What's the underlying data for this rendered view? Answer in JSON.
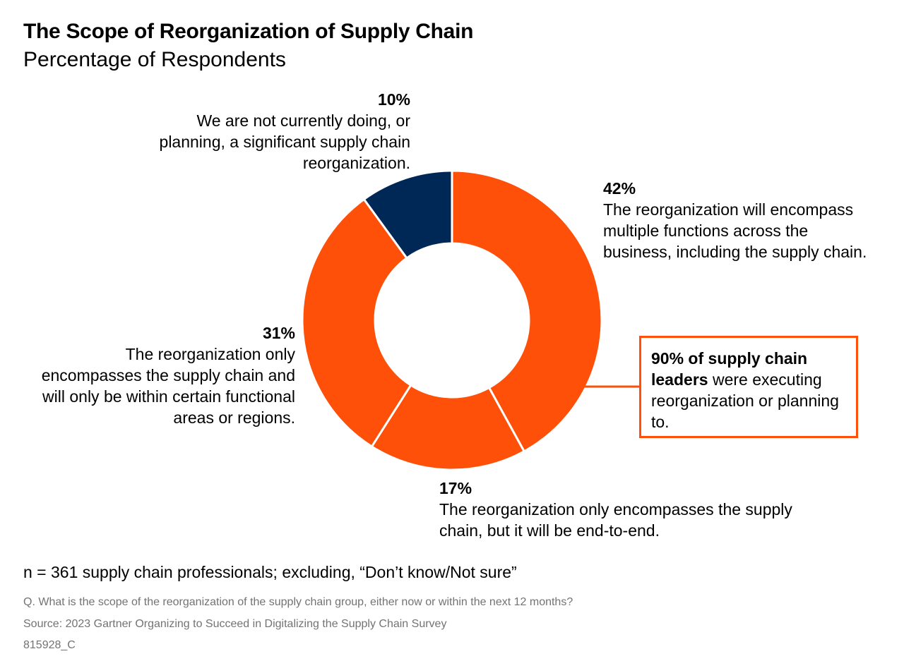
{
  "title": "The Scope of Reorganization of Supply Chain",
  "subtitle": "Percentage of Respondents",
  "chart_data": {
    "type": "pie",
    "variant": "donut",
    "slices": [
      {
        "label": "42%",
        "value": 42,
        "text": "The reorganization will encompass multiple functions across the business, including the supply chain.",
        "color": "#fe5009"
      },
      {
        "label": "17%",
        "value": 17,
        "text": "The reorganization only encompasses the supply chain, but it will be end-to-end.",
        "color": "#fe5009"
      },
      {
        "label": "31%",
        "value": 31,
        "text": "The reorganization only encompasses the supply chain and will only be within certain functional areas or regions.",
        "color": "#fe5009"
      },
      {
        "label": "10%",
        "value": 10,
        "text": "We are not currently doing, or planning, a significant supply chain reorganization.",
        "color": "#002856"
      }
    ]
  },
  "callout": {
    "bold": "90% of supply chain leaders",
    "rest": " were executing reorganization or planning to.",
    "border_color": "#fe5009"
  },
  "note": "n = 361 supply chain professionals; excluding, “Don’t know/Not sure”",
  "question": "Q. What is the scope of the reorganization of the supply chain group, either now or within the next 12 months?",
  "source": "Source: 2023 Gartner Organizing to Succeed in Digitalizing the Supply Chain Survey",
  "code": "815928_C"
}
